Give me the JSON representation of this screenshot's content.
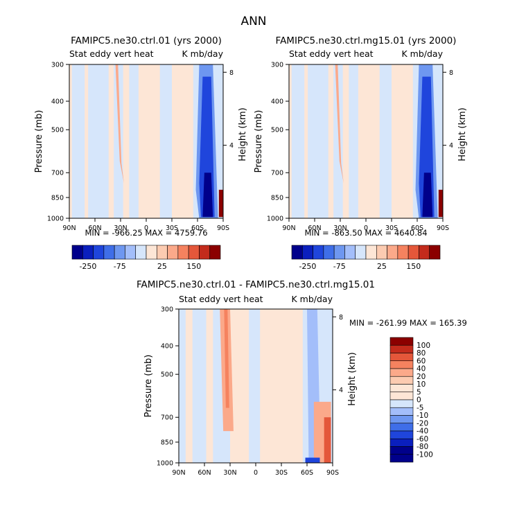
{
  "suptitle": "ANN",
  "colors": {
    "sequential": [
      "#00008b",
      "#0a1fbe",
      "#1f45dc",
      "#3f6ee8",
      "#6e97f0",
      "#a3befa",
      "#d6e6fb",
      "#fde6d6",
      "#fccbb1",
      "#fba98a",
      "#f5825f",
      "#e4573a",
      "#c32b1c",
      "#8b0000"
    ],
    "diverging": [
      "#00008b",
      "#0a1fbe",
      "#1f45dc",
      "#3f6ee8",
      "#6e97f0",
      "#a3befa",
      "#d6e6fb",
      "#fde6d6",
      "#fccbb1",
      "#fba98a",
      "#f5825f",
      "#e4573a",
      "#c32b1c",
      "#8b0000"
    ],
    "axis": "#000000"
  },
  "chart_data": [
    {
      "type": "heatmap",
      "id": "panel1",
      "title": "FAMIPC5.ne30.ctrl.01 (yrs 2000)",
      "subtitle_left": "Stat eddy vert heat",
      "subtitle_right": "K mb/day",
      "ylabel": "Pressure (mb)",
      "ylabel_right": "Height (km)",
      "x_ticks": [
        "90N",
        "60N",
        "30N",
        "0",
        "30S",
        "60S",
        "90S"
      ],
      "x_range": [
        90,
        -90
      ],
      "y_ticks": [
        "300",
        "400",
        "500",
        "700",
        "850",
        "1000"
      ],
      "y_range": [
        300,
        1000
      ],
      "y_scale": "log",
      "y_right_ticks": [
        "8",
        "4"
      ],
      "stats": "MIN = -966.25   MAX = 4759.76",
      "colorbar": {
        "orientation": "horizontal",
        "labels": [
          "-250",
          "-75",
          "25",
          "150"
        ]
      },
      "palette": "sequential"
    },
    {
      "type": "heatmap",
      "id": "panel2",
      "title": "FAMIPC5.ne30.ctrl.mg15.01 (yrs 2000)",
      "subtitle_left": "Stat eddy vert heat",
      "subtitle_right": "K mb/day",
      "ylabel": "Pressure (mb)",
      "ylabel_right": "Height (km)",
      "x_ticks": [
        "90N",
        "60N",
        "30N",
        "0",
        "30S",
        "60S",
        "90S"
      ],
      "x_range": [
        90,
        -90
      ],
      "y_ticks": [
        "300",
        "400",
        "500",
        "700",
        "850",
        "1000"
      ],
      "y_range": [
        300,
        1000
      ],
      "y_scale": "log",
      "y_right_ticks": [
        "8",
        "4"
      ],
      "stats": "MIN = -863.50   MAX = 4640.84",
      "colorbar": {
        "orientation": "horizontal",
        "labels": [
          "-250",
          "-75",
          "25",
          "150"
        ]
      },
      "palette": "sequential"
    },
    {
      "type": "heatmap",
      "id": "panel3",
      "title": "FAMIPC5.ne30.ctrl.01 - FAMIPC5.ne30.ctrl.mg15.01",
      "subtitle_left": "Stat eddy vert heat",
      "subtitle_right": "K mb/day",
      "ylabel": "Pressure (mb)",
      "ylabel_right": "Height (km)",
      "x_ticks": [
        "90N",
        "60N",
        "30N",
        "0",
        "30S",
        "60S",
        "90S"
      ],
      "x_range": [
        90,
        -90
      ],
      "y_ticks": [
        "300",
        "400",
        "500",
        "700",
        "850",
        "1000"
      ],
      "y_range": [
        300,
        1000
      ],
      "y_scale": "log",
      "y_right_ticks": [
        "8",
        "4"
      ],
      "stats": "MIN = -261.99   MAX = 165.39",
      "colorbar": {
        "orientation": "vertical",
        "labels": [
          "100",
          "80",
          "60",
          "40",
          "20",
          "10",
          "5",
          "0",
          "-5",
          "-10",
          "-20",
          "-40",
          "-60",
          "-80",
          "-100"
        ]
      },
      "palette": "diverging"
    }
  ]
}
